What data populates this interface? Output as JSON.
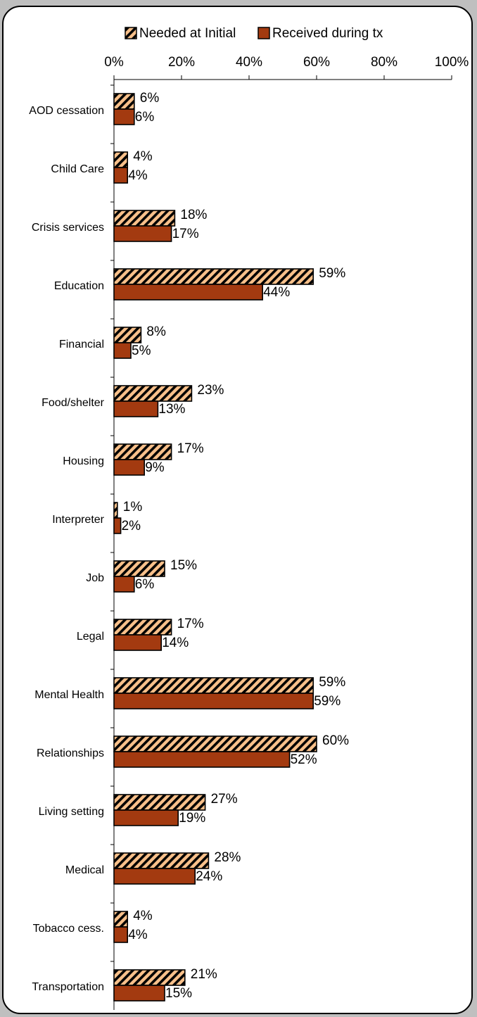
{
  "chart_data": {
    "type": "bar",
    "orientation": "horizontal",
    "title": "",
    "xlabel": "",
    "ylabel": "",
    "xlim": [
      0,
      100
    ],
    "x_ticks": [
      "0%",
      "20%",
      "40%",
      "60%",
      "80%",
      "100%"
    ],
    "axis_position": "top",
    "legend_position": "top",
    "grid": false,
    "categories": [
      "AOD cessation",
      "Child Care",
      "Crisis services",
      "Education",
      "Financial",
      "Food/shelter",
      "Housing",
      "Interpreter",
      "Job",
      "Legal",
      "Mental Health",
      "Relationships",
      "Living setting",
      "Medical",
      "Tobacco cess.",
      "Transportation"
    ],
    "series": [
      {
        "name": "Needed at Initial",
        "pattern": "hatched",
        "color": "#f8c08a",
        "values": [
          6,
          4,
          18,
          59,
          8,
          23,
          17,
          1,
          15,
          17,
          59,
          60,
          27,
          28,
          4,
          21
        ],
        "labels": [
          "6%",
          "4%",
          "18%",
          "59%",
          "8%",
          "23%",
          "17%",
          "1%",
          "15%",
          "17%",
          "59%",
          "60%",
          "27%",
          "28%",
          "4%",
          "21%"
        ]
      },
      {
        "name": "Received during tx",
        "pattern": "solid",
        "color": "#a33a10",
        "values": [
          6,
          4,
          17,
          44,
          5,
          13,
          9,
          2,
          6,
          14,
          59,
          52,
          19,
          24,
          4,
          15
        ],
        "labels": [
          "6%",
          "4%",
          "17%",
          "44%",
          "5%",
          "13%",
          "9%",
          "2%",
          "6%",
          "14%",
          "59%",
          "52%",
          "19%",
          "24%",
          "4%",
          "15%"
        ]
      }
    ]
  }
}
